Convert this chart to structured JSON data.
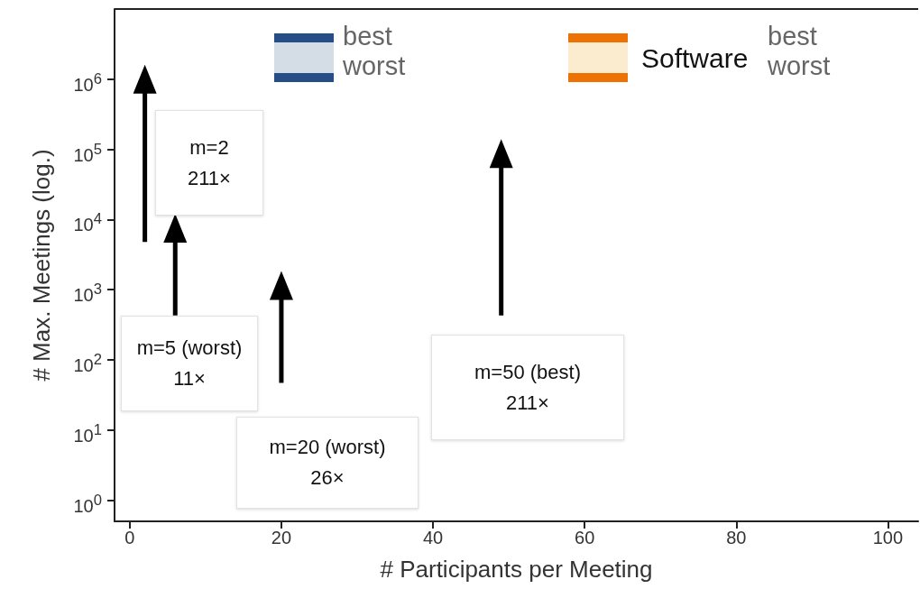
{
  "chart_data": {
    "type": "line",
    "xlabel": "# Participants per Meeting",
    "ylabel": "# Max. Meetings (log.)",
    "log": "y",
    "grid": false,
    "marker": "triangle",
    "xlim": [
      -2,
      104
    ],
    "xticks": [
      0,
      20,
      40,
      60,
      80,
      100
    ],
    "ylim": [
      0.5,
      10000000
    ],
    "yticks": [
      {
        "value": 1,
        "label": "10$^{0}$"
      },
      {
        "value": 10,
        "label": "10$^{1}$"
      },
      {
        "value": 100,
        "label": "10$^{2}$"
      },
      {
        "value": 1000,
        "label": "10$^{3}$"
      },
      {
        "value": 10000,
        "label": "10$^{4}$"
      },
      {
        "value": 100000,
        "label": "10$^{5}$"
      },
      {
        "value": 1000000,
        "label": "10$^{6}$"
      }
    ],
    "series": [
      {
        "color": "#000000",
        "x": [
          2,
          2
        ],
        "values": [
          4800,
          1000000
        ]
      },
      {
        "color": "#000000",
        "x": [
          6,
          6
        ],
        "values": [
          430,
          7500
        ]
      },
      {
        "color": "#000000",
        "x": [
          20,
          20
        ],
        "values": [
          47,
          1150
        ]
      },
      {
        "color": "#000000",
        "x": [
          49,
          49
        ],
        "values": [
          430,
          87000
        ]
      }
    ],
    "annotations": [
      "m=2\n211×",
      "m=5 (worst)\n11×",
      "m=20 (worst)\n26×",
      "m=50 (best)\n211×",
      "best",
      "worst",
      "Software",
      "best",
      "worst"
    ]
  }
}
